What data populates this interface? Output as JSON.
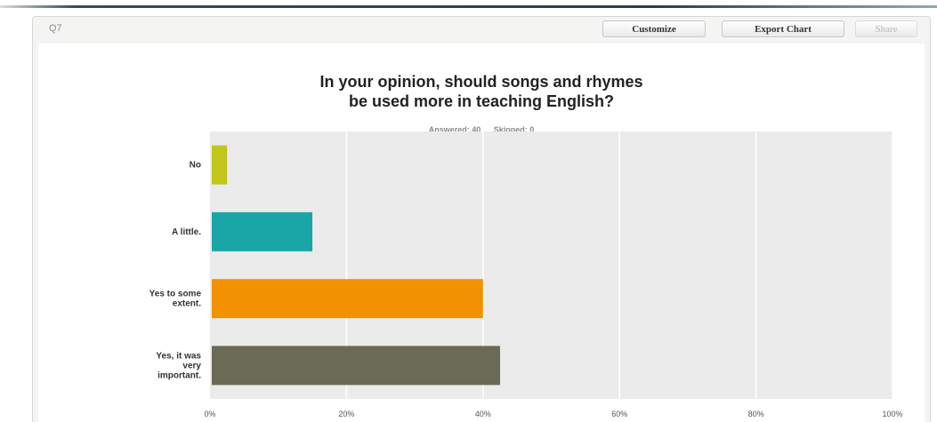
{
  "question": {
    "number": "Q7",
    "buttons": {
      "customize": "Customize",
      "export": "Export Chart",
      "share": "Share"
    },
    "title_lines": [
      "In your opinion, should songs and rhymes",
      "be used more in teaching English?"
    ],
    "answered": "Answered: 40",
    "skipped": "Skipped: 0"
  },
  "colors": {
    "plot_bg": "#ebebeb",
    "grid": "#ffffff",
    "bars": [
      "#c2c51a",
      "#1aa6a6",
      "#f39200",
      "#6b6b55"
    ]
  },
  "chart_data": {
    "type": "bar",
    "orientation": "horizontal",
    "title": "In your opinion, should songs and rhymes be used more in teaching English?",
    "categories": [
      [
        "No"
      ],
      [
        "A little."
      ],
      [
        "Yes to some",
        "extent."
      ],
      [
        "Yes, it was",
        "very",
        "important."
      ]
    ],
    "values": [
      2.5,
      15,
      40,
      42.5
    ],
    "xlim": [
      0,
      100
    ],
    "xticks": [
      0,
      20,
      40,
      60,
      80,
      100
    ],
    "xtick_labels": [
      "0%",
      "20%",
      "40%",
      "60%",
      "80%",
      "100%"
    ],
    "grid": true,
    "legend": "none"
  }
}
